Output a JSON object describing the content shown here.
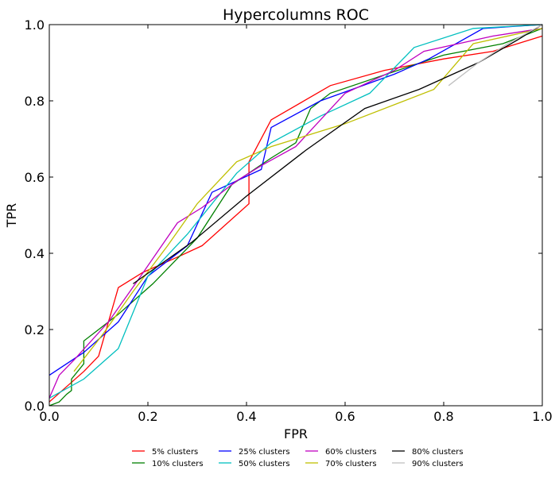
{
  "chart_data": {
    "type": "line",
    "title": "Hypercolumns ROC",
    "xlabel": "FPR",
    "ylabel": "TPR",
    "xlim": [
      0,
      1
    ],
    "ylim": [
      0,
      1
    ],
    "xticks": [
      "0.0",
      "0.2",
      "0.4",
      "0.6",
      "0.8",
      "1.0"
    ],
    "yticks": [
      "0.0",
      "0.2",
      "0.4",
      "0.6",
      "0.8",
      "1.0"
    ],
    "grid": false,
    "legend_position": "bottom",
    "series": [
      {
        "name": "5% clusters",
        "color": "#ff0000",
        "points": [
          [
            0,
            0.01
          ],
          [
            0.07,
            0.09
          ],
          [
            0.1,
            0.13
          ],
          [
            0.14,
            0.31
          ],
          [
            0.19,
            0.35
          ],
          [
            0.26,
            0.39
          ],
          [
            0.31,
            0.42
          ],
          [
            0.405,
            0.53
          ],
          [
            0.405,
            0.64
          ],
          [
            0.45,
            0.75
          ],
          [
            0.57,
            0.84
          ],
          [
            0.68,
            0.88
          ],
          [
            0.8,
            0.91
          ],
          [
            0.9,
            0.93
          ],
          [
            1.0,
            0.97
          ]
        ]
      },
      {
        "name": "10% clusters",
        "color": "#008000",
        "points": [
          [
            0,
            0
          ],
          [
            0.02,
            0.01
          ],
          [
            0.035,
            0.03
          ],
          [
            0.045,
            0.04
          ],
          [
            0.045,
            0.07
          ],
          [
            0.07,
            0.11
          ],
          [
            0.07,
            0.17
          ],
          [
            0.14,
            0.24
          ],
          [
            0.21,
            0.32
          ],
          [
            0.3,
            0.44
          ],
          [
            0.37,
            0.58
          ],
          [
            0.45,
            0.65
          ],
          [
            0.5,
            0.69
          ],
          [
            0.53,
            0.78
          ],
          [
            0.57,
            0.82
          ],
          [
            0.73,
            0.89
          ],
          [
            0.8,
            0.92
          ],
          [
            0.92,
            0.95
          ],
          [
            1.0,
            0.99
          ]
        ]
      },
      {
        "name": "25% clusters",
        "color": "#0000ff",
        "points": [
          [
            0,
            0.08
          ],
          [
            0.07,
            0.14
          ],
          [
            0.14,
            0.22
          ],
          [
            0.2,
            0.34
          ],
          [
            0.28,
            0.42
          ],
          [
            0.33,
            0.56
          ],
          [
            0.43,
            0.62
          ],
          [
            0.45,
            0.73
          ],
          [
            0.55,
            0.8
          ],
          [
            0.7,
            0.87
          ],
          [
            0.77,
            0.91
          ],
          [
            0.88,
            0.99
          ],
          [
            1.0,
            1.0
          ]
        ]
      },
      {
        "name": "50% clusters",
        "color": "#00bfbf",
        "points": [
          [
            0,
            0.02
          ],
          [
            0.07,
            0.07
          ],
          [
            0.14,
            0.15
          ],
          [
            0.2,
            0.34
          ],
          [
            0.28,
            0.45
          ],
          [
            0.38,
            0.61
          ],
          [
            0.45,
            0.69
          ],
          [
            0.55,
            0.76
          ],
          [
            0.65,
            0.82
          ],
          [
            0.74,
            0.94
          ],
          [
            0.86,
            0.99
          ],
          [
            1.0,
            1.0
          ]
        ]
      },
      {
        "name": "60% clusters",
        "color": "#bf00bf",
        "points": [
          [
            0,
            0.02
          ],
          [
            0.02,
            0.08
          ],
          [
            0.05,
            0.12
          ],
          [
            0.12,
            0.22
          ],
          [
            0.18,
            0.33
          ],
          [
            0.26,
            0.48
          ],
          [
            0.31,
            0.52
          ],
          [
            0.38,
            0.59
          ],
          [
            0.43,
            0.63
          ],
          [
            0.5,
            0.68
          ],
          [
            0.6,
            0.82
          ],
          [
            0.7,
            0.88
          ],
          [
            0.76,
            0.93
          ],
          [
            0.9,
            0.97
          ],
          [
            1.0,
            0.99
          ]
        ]
      },
      {
        "name": "70% clusters",
        "color": "#bfbf00",
        "points": [
          [
            0.05,
            0.09
          ],
          [
            0.11,
            0.19
          ],
          [
            0.17,
            0.3
          ],
          [
            0.24,
            0.42
          ],
          [
            0.3,
            0.53
          ],
          [
            0.38,
            0.64
          ],
          [
            0.45,
            0.68
          ],
          [
            0.6,
            0.74
          ],
          [
            0.78,
            0.83
          ],
          [
            0.86,
            0.95
          ],
          [
            1.0,
            0.99
          ]
        ]
      },
      {
        "name": "80% clusters",
        "color": "#000000",
        "points": [
          [
            0.17,
            0.32
          ],
          [
            0.29,
            0.43
          ],
          [
            0.4,
            0.55
          ],
          [
            0.52,
            0.67
          ],
          [
            0.64,
            0.78
          ],
          [
            0.75,
            0.83
          ],
          [
            0.87,
            0.9
          ],
          [
            0.95,
            0.96
          ],
          [
            1.0,
            1.0
          ]
        ]
      },
      {
        "name": "90% clusters",
        "color": "#bfbfbf",
        "points": [
          [
            0.81,
            0.84
          ],
          [
            0.87,
            0.9
          ],
          [
            0.93,
            0.95
          ],
          [
            1.0,
            1.0
          ]
        ]
      }
    ]
  }
}
